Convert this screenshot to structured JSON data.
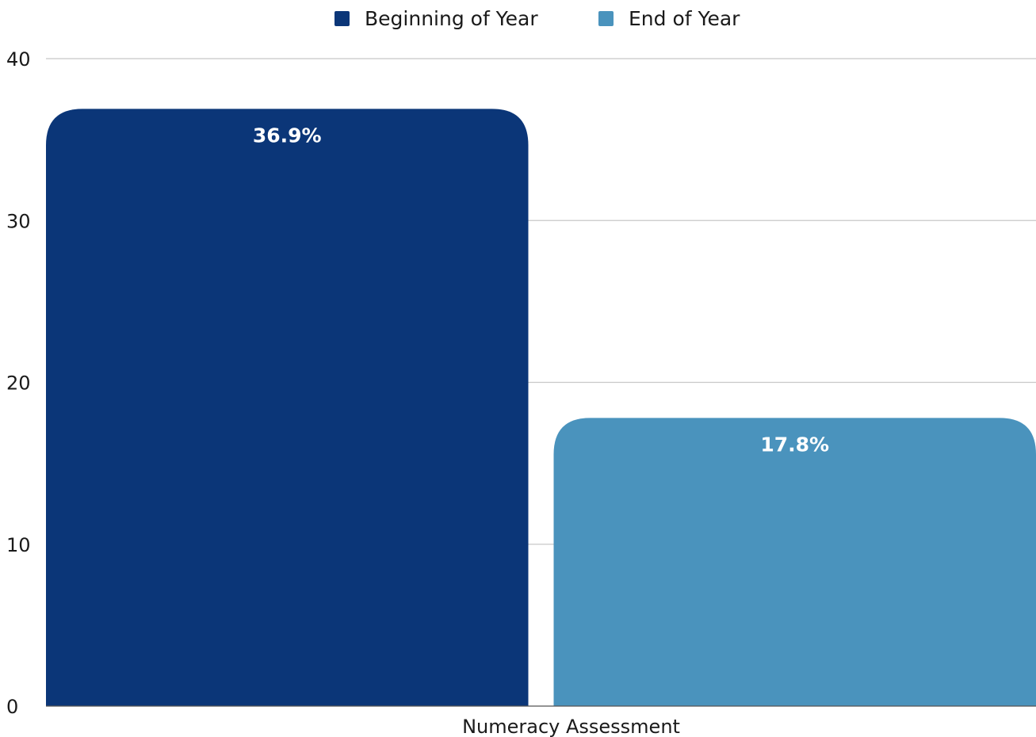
{
  "chart_data": {
    "type": "bar",
    "categories": [
      "Numeracy Assessment"
    ],
    "series": [
      {
        "name": "Beginning of Year",
        "values": [
          36.9
        ],
        "color": "#0b3678",
        "label": "36.9%"
      },
      {
        "name": "End of Year",
        "values": [
          17.8
        ],
        "color": "#4a93bd",
        "label": "17.8%"
      }
    ],
    "title": "",
    "xlabel": "",
    "ylabel": "",
    "ylim": [
      0,
      40
    ],
    "yticks": [
      0,
      10,
      20,
      30,
      40
    ],
    "grid": true,
    "legend_position": "top-center"
  }
}
